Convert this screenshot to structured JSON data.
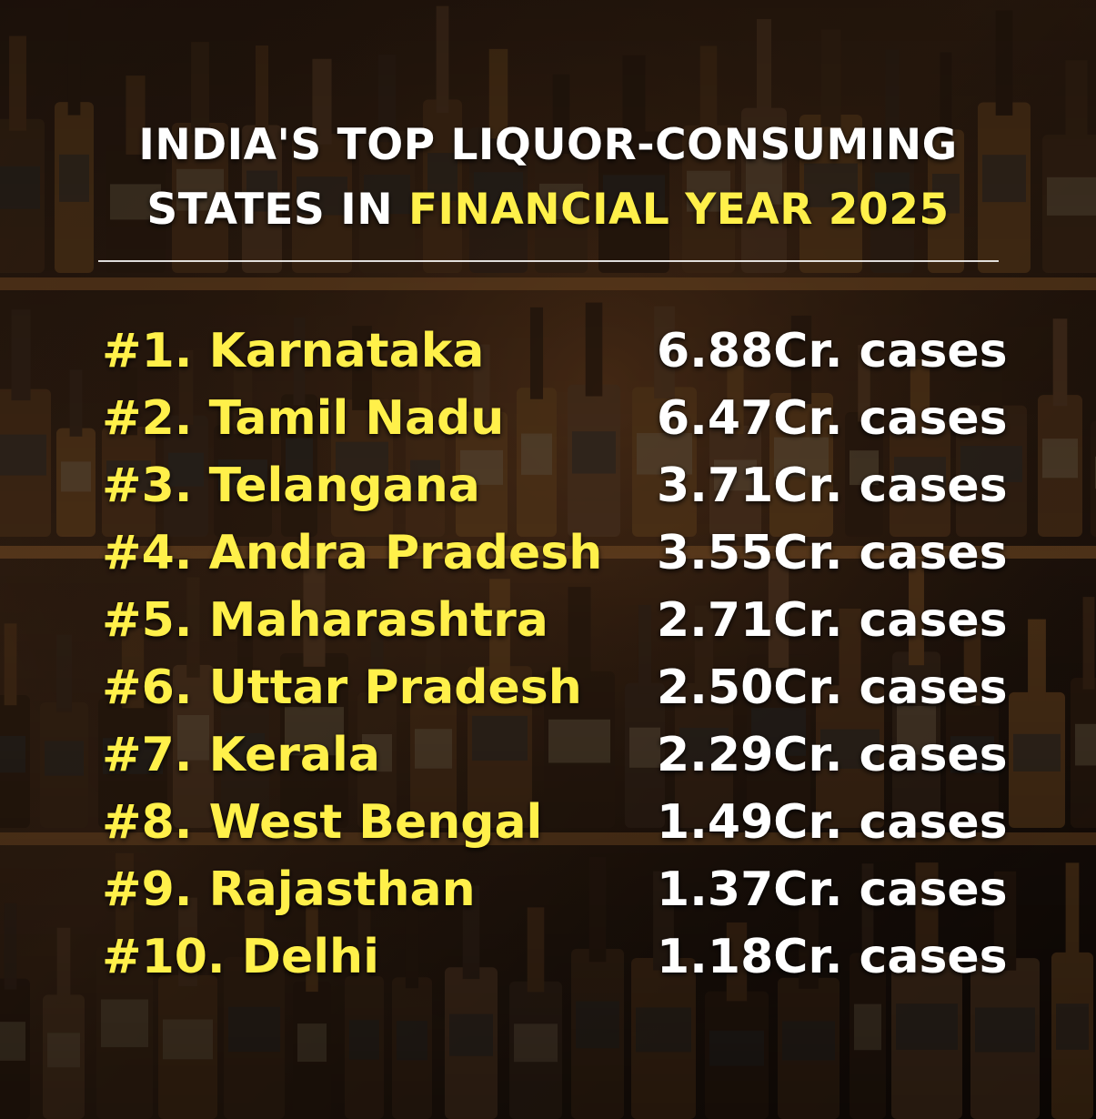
{
  "title": {
    "line1": "INDIA'S TOP LIQUOR-CONSUMING",
    "line2_white": "STATES IN ",
    "line2_highlight": "FINANCIAL YEAR 2025"
  },
  "ranking": [
    {
      "rank": "#1.",
      "state": "Karnataka",
      "value": "6.88Cr. cases"
    },
    {
      "rank": "#2.",
      "state": "Tamil Nadu",
      "value": "6.47Cr. cases"
    },
    {
      "rank": "#3.",
      "state": "Telangana",
      "value": "3.71Cr. cases"
    },
    {
      "rank": "#4.",
      "state": "Andra Pradesh",
      "value": "3.55Cr. cases"
    },
    {
      "rank": "#5.",
      "state": "Maharashtra",
      "value": "2.71Cr. cases"
    },
    {
      "rank": "#6.",
      "state": "Uttar Pradesh",
      "value": "2.50Cr. cases"
    },
    {
      "rank": "#7.",
      "state": "Kerala",
      "value": "2.29Cr. cases"
    },
    {
      "rank": "#8.",
      "state": "West Bengal",
      "value": "1.49Cr. cases"
    },
    {
      "rank": "#9.",
      "state": "Rajasthan",
      "value": "1.37Cr. cases"
    },
    {
      "rank": "#10.",
      "state": "Delhi",
      "value": "1.18Cr. cases"
    }
  ],
  "colors": {
    "highlight": "#fff04a",
    "text": "#ffffff",
    "background": "#1a0f08"
  }
}
